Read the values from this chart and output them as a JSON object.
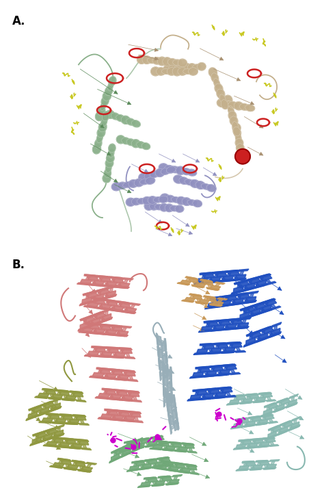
{
  "figure_width": 4.74,
  "figure_height": 7.16,
  "dpi": 100,
  "background_color": "#ffffff",
  "label_A": "A.",
  "label_B": "B.",
  "label_fontsize": 12,
  "label_fontweight": "bold",
  "panel_A_yrange": [
    0.505,
    1.0
  ],
  "panel_B_yrange": [
    0.0,
    0.505
  ],
  "colors": {
    "green_light": "#8ab08a",
    "green_dark": "#5a8a5a",
    "tan": "#c4b08c",
    "tan_dark": "#a89070",
    "blue_lavender": "#9090c0",
    "red": "#cc2020",
    "yellow": "#c8c820",
    "pink": "#d07878",
    "blue_bright": "#2050c0",
    "olive": "#909840",
    "sage_green": "#70a878",
    "teal_light": "#88b8b0",
    "silver_gray": "#98aeb8",
    "tan_orange": "#c89858",
    "magenta": "#cc00cc",
    "black": "#202020"
  }
}
